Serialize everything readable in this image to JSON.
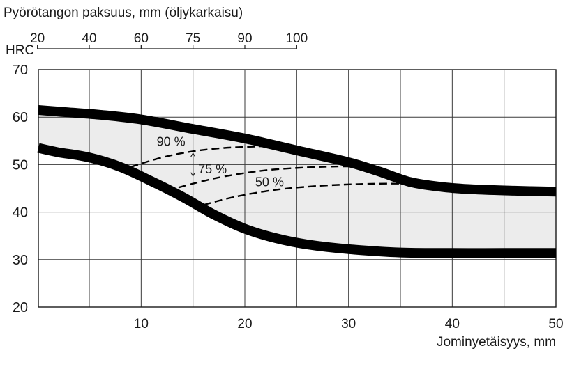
{
  "chart_data": {
    "type": "area",
    "title": "Pyörötangon paksuus, mm (öljykarkaisu)",
    "ylabel": "HRC",
    "xlabel": "Jominyetäisyys, mm",
    "xlim": [
      0,
      50
    ],
    "ylim": [
      20,
      70
    ],
    "x_ticks": [
      10,
      20,
      30,
      40,
      50
    ],
    "y_ticks": [
      20,
      30,
      40,
      50,
      60,
      70
    ],
    "grid": true,
    "top_axis": {
      "label": "Pyörötangon paksuus, mm (öljykarkaisu)",
      "ticks": [
        {
          "label": "20",
          "jominy": 0
        },
        {
          "label": "40",
          "jominy": 5
        },
        {
          "label": "60",
          "jominy": 10
        },
        {
          "label": "75",
          "jominy": 15
        },
        {
          "label": "90",
          "jominy": 20
        },
        {
          "label": "100",
          "jominy": 25
        }
      ]
    },
    "band_fill": "#ececec",
    "band_stroke": "#000000",
    "series": [
      {
        "role": "upper-limit",
        "style": "thick",
        "x": [
          -1,
          3,
          6,
          10,
          15,
          20,
          25,
          30,
          33,
          36,
          39,
          42,
          46,
          50
        ],
        "y": [
          61.5,
          61,
          60.5,
          59.5,
          57.5,
          55.5,
          53,
          50.5,
          48.5,
          46.3,
          45.3,
          44.8,
          44.5,
          44.3
        ]
      },
      {
        "role": "lower-limit",
        "style": "thick",
        "x": [
          -1,
          2,
          5,
          8,
          11,
          14,
          17,
          20,
          23,
          26,
          30,
          35,
          40,
          45,
          50
        ],
        "y": [
          53.5,
          52.6,
          51.5,
          49.5,
          46.5,
          43.2,
          39.5,
          36.5,
          34.5,
          33.2,
          32.2,
          31.5,
          31.4,
          31.4,
          31.4
        ]
      },
      {
        "name": "90 %",
        "style": "dashed",
        "x": [
          9,
          12,
          15,
          18,
          21,
          22
        ],
        "y": [
          49.5,
          51.5,
          52.8,
          53.5,
          53.8,
          53.9
        ]
      },
      {
        "name": "75 %",
        "style": "dashed",
        "x": [
          12.5,
          15,
          18,
          22,
          26,
          29,
          31
        ],
        "y": [
          44.5,
          46,
          47.5,
          48.8,
          49.4,
          49.6,
          49.6
        ]
      },
      {
        "name": "50 %",
        "style": "dashed",
        "x": [
          16,
          19,
          23,
          27,
          31,
          34,
          36
        ],
        "y": [
          41.5,
          43.2,
          44.7,
          45.5,
          45.9,
          46,
          46
        ]
      }
    ],
    "annotations": [
      {
        "text": "90 %",
        "x": 11.5,
        "y": 55
      },
      {
        "text": "75 %",
        "x": 15.5,
        "y": 49.2
      },
      {
        "text": "50 %",
        "x": 21,
        "y": 46.5
      }
    ],
    "colors": {
      "curve": "#000000",
      "band": "#ececec",
      "grid": "#3a3a3a"
    }
  }
}
